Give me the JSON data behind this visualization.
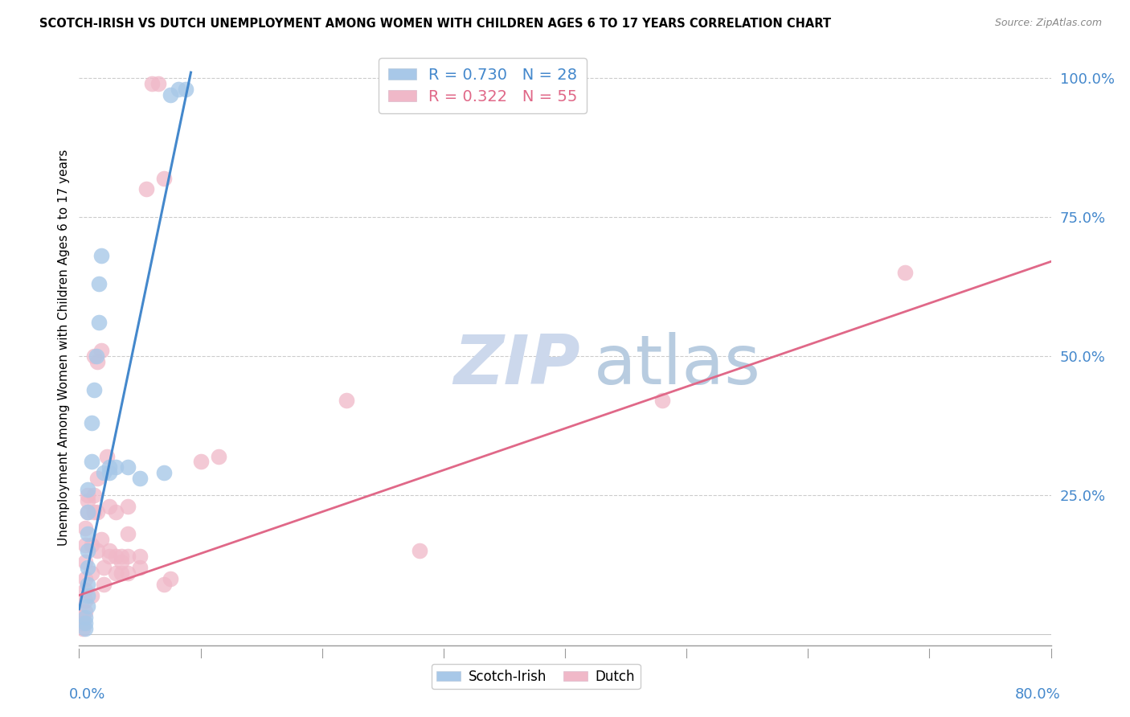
{
  "title": "SCOTCH-IRISH VS DUTCH UNEMPLOYMENT AMONG WOMEN WITH CHILDREN AGES 6 TO 17 YEARS CORRELATION CHART",
  "source": "Source: ZipAtlas.com",
  "ylabel": "Unemployment Among Women with Children Ages 6 to 17 years",
  "xlim": [
    0.0,
    0.8
  ],
  "ylim": [
    -0.02,
    1.05
  ],
  "scotch_irish_color": "#a8c8e8",
  "dutch_color": "#f0b8c8",
  "scotch_irish_R": 0.73,
  "scotch_irish_N": 28,
  "dutch_R": 0.322,
  "dutch_N": 55,
  "scotch_irish_line_color": "#4488cc",
  "dutch_line_color": "#e06888",
  "watermark_zip": "ZIP",
  "watermark_atlas": "atlas",
  "watermark_color_zip": "#d0dff0",
  "watermark_color_atlas": "#c8d8e8",
  "background_color": "#ffffff",
  "scotch_irish_points": [
    [
      0.005,
      0.01
    ],
    [
      0.005,
      0.02
    ],
    [
      0.005,
      0.03
    ],
    [
      0.007,
      0.05
    ],
    [
      0.007,
      0.07
    ],
    [
      0.007,
      0.09
    ],
    [
      0.007,
      0.12
    ],
    [
      0.007,
      0.15
    ],
    [
      0.007,
      0.18
    ],
    [
      0.007,
      0.22
    ],
    [
      0.007,
      0.26
    ],
    [
      0.01,
      0.31
    ],
    [
      0.01,
      0.38
    ],
    [
      0.012,
      0.44
    ],
    [
      0.014,
      0.5
    ],
    [
      0.016,
      0.56
    ],
    [
      0.016,
      0.63
    ],
    [
      0.018,
      0.68
    ],
    [
      0.02,
      0.29
    ],
    [
      0.025,
      0.29
    ],
    [
      0.025,
      0.3
    ],
    [
      0.03,
      0.3
    ],
    [
      0.04,
      0.3
    ],
    [
      0.05,
      0.28
    ],
    [
      0.07,
      0.29
    ],
    [
      0.075,
      0.97
    ],
    [
      0.082,
      0.98
    ],
    [
      0.088,
      0.98
    ]
  ],
  "dutch_points": [
    [
      0.003,
      0.01
    ],
    [
      0.003,
      0.02
    ],
    [
      0.003,
      0.03
    ],
    [
      0.005,
      0.04
    ],
    [
      0.005,
      0.06
    ],
    [
      0.005,
      0.08
    ],
    [
      0.005,
      0.1
    ],
    [
      0.005,
      0.13
    ],
    [
      0.005,
      0.16
    ],
    [
      0.005,
      0.19
    ],
    [
      0.007,
      0.22
    ],
    [
      0.007,
      0.24
    ],
    [
      0.007,
      0.25
    ],
    [
      0.01,
      0.07
    ],
    [
      0.01,
      0.11
    ],
    [
      0.01,
      0.16
    ],
    [
      0.012,
      0.22
    ],
    [
      0.012,
      0.25
    ],
    [
      0.012,
      0.5
    ],
    [
      0.015,
      0.15
    ],
    [
      0.015,
      0.22
    ],
    [
      0.015,
      0.28
    ],
    [
      0.015,
      0.49
    ],
    [
      0.018,
      0.17
    ],
    [
      0.018,
      0.51
    ],
    [
      0.02,
      0.09
    ],
    [
      0.02,
      0.12
    ],
    [
      0.023,
      0.32
    ],
    [
      0.025,
      0.14
    ],
    [
      0.025,
      0.15
    ],
    [
      0.025,
      0.23
    ],
    [
      0.03,
      0.11
    ],
    [
      0.03,
      0.14
    ],
    [
      0.03,
      0.22
    ],
    [
      0.035,
      0.11
    ],
    [
      0.035,
      0.13
    ],
    [
      0.035,
      0.14
    ],
    [
      0.04,
      0.11
    ],
    [
      0.04,
      0.14
    ],
    [
      0.04,
      0.18
    ],
    [
      0.04,
      0.23
    ],
    [
      0.05,
      0.12
    ],
    [
      0.05,
      0.14
    ],
    [
      0.055,
      0.8
    ],
    [
      0.06,
      0.99
    ],
    [
      0.065,
      0.99
    ],
    [
      0.07,
      0.82
    ],
    [
      0.07,
      0.09
    ],
    [
      0.075,
      0.1
    ],
    [
      0.1,
      0.31
    ],
    [
      0.115,
      0.32
    ],
    [
      0.22,
      0.42
    ],
    [
      0.28,
      0.15
    ],
    [
      0.48,
      0.42
    ],
    [
      0.68,
      0.65
    ]
  ],
  "si_line_x": [
    0.0,
    0.092
  ],
  "si_line_y": [
    0.045,
    1.01
  ],
  "du_line_x": [
    0.0,
    0.8
  ],
  "du_line_y": [
    0.07,
    0.67
  ]
}
